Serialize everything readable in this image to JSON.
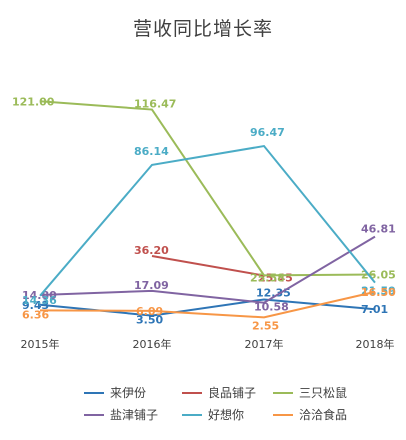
{
  "chart_data": {
    "type": "line",
    "title": "营收同比增长率",
    "categories": [
      "2015年",
      "2016年",
      "2017年",
      "2018年"
    ],
    "ylim": [
      0,
      125
    ],
    "grid": false,
    "legend_position": "bottom",
    "series": [
      {
        "name": "来伊份",
        "color": "#2E75B6",
        "values": [
          9.43,
          3.5,
          12.35,
          7.01
        ]
      },
      {
        "name": "良品铺子",
        "color": "#C0504D",
        "values": [
          null,
          36.2,
          25.45,
          null
        ]
      },
      {
        "name": "三只松鼠",
        "color": "#9BBB59",
        "values": [
          121.0,
          116.47,
          25.58,
          26.05
        ]
      },
      {
        "name": "盐津铺子",
        "color": "#8064A2",
        "values": [
          14.8,
          17.09,
          10.58,
          46.81
        ]
      },
      {
        "name": "好想你",
        "color": "#4BACC6",
        "values": [
          14.36,
          86.14,
          96.47,
          21.59
        ]
      },
      {
        "name": "洽洽食品",
        "color": "#F79646",
        "values": [
          6.36,
          6.09,
          2.55,
          16.5
        ]
      }
    ],
    "labels": [
      [
        "9.43",
        "3.50",
        "12.35",
        "7.01"
      ],
      [
        "",
        "36.20",
        "25.45",
        ""
      ],
      [
        "121.00",
        "116.47",
        "25.58",
        "26.05"
      ],
      [
        "14.80",
        "17.09",
        "10.58",
        "46.81"
      ],
      [
        "14.36",
        "86.14",
        "96.47",
        "21.59"
      ],
      [
        "6.36",
        "6.09",
        "2.55",
        "16.50"
      ]
    ]
  }
}
